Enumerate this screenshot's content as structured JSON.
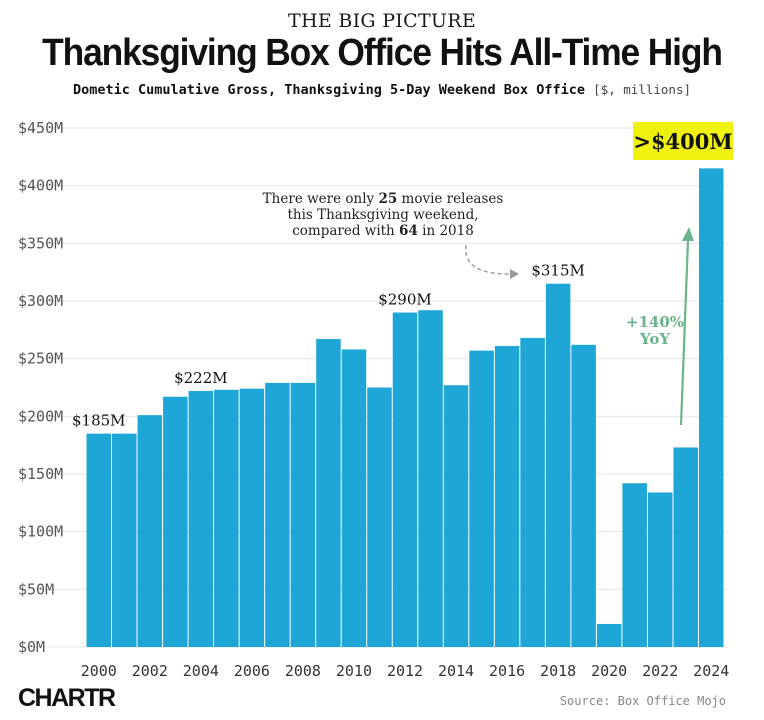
{
  "header": {
    "kicker": "THE BIG PICTURE",
    "title": "Thanksgiving Box Office Hits All-Time High",
    "subtitle": "Dometic Cumulative Gross, Thanksgiving 5-Day Weekend Box Office",
    "subtitle_unit": "[$, millions]"
  },
  "chart_data": {
    "type": "bar",
    "title": "Thanksgiving Box Office Hits All-Time High",
    "ylabel": "$, millions",
    "ylim": [
      0,
      450
    ],
    "y_ticks": [
      0,
      50,
      100,
      150,
      200,
      250,
      300,
      350,
      400,
      450
    ],
    "y_tick_labels": [
      "$0M",
      "$50M",
      "$100M",
      "$150M",
      "$200M",
      "$250M",
      "$300M",
      "$350M",
      "$400M",
      "$450M"
    ],
    "categories": [
      "2000",
      "2001",
      "2002",
      "2003",
      "2004",
      "2005",
      "2006",
      "2007",
      "2008",
      "2009",
      "2010",
      "2011",
      "2012",
      "2013",
      "2014",
      "2015",
      "2016",
      "2017",
      "2018",
      "2019",
      "2020",
      "2021",
      "2022",
      "2023",
      "2024"
    ],
    "values": [
      185,
      185,
      201,
      217,
      222,
      223,
      224,
      229,
      229,
      267,
      258,
      225,
      290,
      292,
      227,
      257,
      261,
      268,
      315,
      262,
      20,
      142,
      134,
      173,
      415
    ],
    "x_tick_labels": [
      "2000",
      "2002",
      "2004",
      "2006",
      "2008",
      "2010",
      "2012",
      "2014",
      "2016",
      "2018",
      "2020",
      "2022",
      "2024"
    ],
    "grid": true,
    "data_labels": [
      {
        "year": "2000",
        "text": "$185M"
      },
      {
        "year": "2004",
        "text": "$222M"
      },
      {
        "year": "2012",
        "text": "$290M"
      },
      {
        "year": "2018",
        "text": "$315M"
      }
    ],
    "highlight": {
      "year": "2024",
      "text": ">$400M",
      "color": "#eef20c"
    },
    "annotation": {
      "line1_pre": "There were only ",
      "line1_num": "25",
      "line1_post": " movie releases",
      "line2": "this Thanksgiving weekend,",
      "line3_pre": "compared with ",
      "line3_num": "64",
      "line3_post": " in 2018"
    },
    "yoy": {
      "line1": "+140%",
      "line2": "YoY",
      "color": "#6bb38a"
    },
    "colors": {
      "bar": "#1ea6d6",
      "grid": "#e4e4e4"
    }
  },
  "footer": {
    "logo": "CHARTR",
    "source": "Source: Box Office Mojo"
  }
}
